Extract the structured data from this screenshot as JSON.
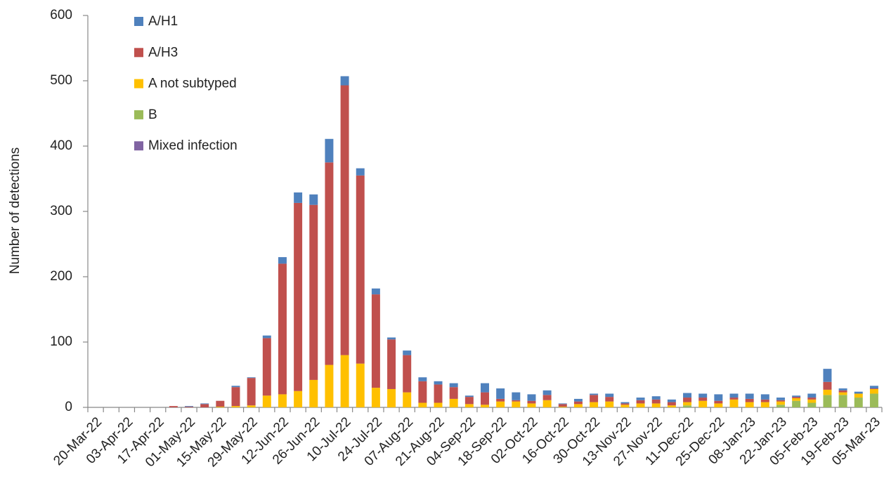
{
  "chart_data": {
    "type": "bar",
    "stacked": true,
    "y_label": "Number of detections",
    "categories": [
      "20-Mar-22",
      null,
      "03-Apr-22",
      null,
      "17-Apr-22",
      null,
      "01-May-22",
      null,
      "15-May-22",
      null,
      "29-May-22",
      null,
      "12-Jun-22",
      null,
      "26-Jun-22",
      null,
      "10-Jul-22",
      null,
      "24-Jul-22",
      null,
      "07-Aug-22",
      null,
      "21-Aug-22",
      null,
      "04-Sep-22",
      null,
      "18-Sep-22",
      null,
      "02-Oct-22",
      null,
      "16-Oct-22",
      null,
      "30-Oct-22",
      null,
      "13-Nov-22",
      null,
      "27-Nov-22",
      null,
      "11-Dec-22",
      null,
      "25-Dec-22",
      null,
      "08-Jan-23",
      null,
      "22-Jan-23",
      null,
      "05-Feb-23",
      null,
      "19-Feb-23",
      null,
      "05-Mar-23"
    ],
    "series": [
      {
        "name": "A/H1",
        "color": "#4f81bd",
        "values": [
          0,
          0,
          0,
          0,
          0,
          0,
          1,
          1,
          0,
          2,
          1,
          4,
          10,
          16,
          16,
          36,
          14,
          11,
          9,
          3,
          7,
          6,
          5,
          6,
          2,
          14,
          16,
          12,
          10,
          7,
          1,
          4,
          2,
          5,
          2,
          4,
          5,
          4,
          7,
          6,
          10,
          6,
          8,
          8,
          4,
          2,
          6,
          20,
          3,
          3,
          4
        ]
      },
      {
        "name": "A/H3",
        "color": "#c0504d",
        "values": [
          0,
          0,
          0,
          0,
          0,
          2,
          1,
          5,
          9,
          29,
          42,
          88,
          200,
          288,
          268,
          310,
          413,
          288,
          143,
          76,
          57,
          33,
          28,
          18,
          11,
          19,
          4,
          2,
          4,
          8,
          4,
          4,
          11,
          7,
          2,
          5,
          6,
          5,
          7,
          5,
          4,
          3,
          5,
          4,
          2,
          2,
          3,
          12,
          3,
          0,
          1
        ]
      },
      {
        "name": "A not subtyped",
        "color": "#ffc000",
        "values": [
          0,
          0,
          0,
          0,
          0,
          0,
          0,
          0,
          1,
          2,
          3,
          18,
          20,
          25,
          42,
          65,
          80,
          67,
          30,
          28,
          23,
          7,
          7,
          13,
          5,
          4,
          9,
          9,
          6,
          11,
          1,
          5,
          8,
          9,
          4,
          6,
          6,
          3,
          5,
          10,
          6,
          12,
          8,
          8,
          5,
          4,
          5,
          8,
          4,
          6,
          7
        ]
      },
      {
        "name": "B",
        "color": "#9bbb59",
        "values": [
          0,
          0,
          0,
          0,
          0,
          0,
          0,
          0,
          0,
          0,
          0,
          0,
          0,
          0,
          0,
          0,
          0,
          0,
          0,
          0,
          0,
          0,
          0,
          0,
          0,
          0,
          0,
          0,
          0,
          0,
          0,
          0,
          0,
          0,
          0,
          0,
          0,
          0,
          3,
          0,
          0,
          0,
          0,
          0,
          4,
          10,
          7,
          19,
          19,
          15,
          21
        ]
      },
      {
        "name": "Mixed infection",
        "color": "#8064a2",
        "values": [
          0,
          0,
          0,
          0,
          0,
          0,
          0,
          0,
          0,
          0,
          0,
          0,
          0,
          0,
          0,
          0,
          0,
          0,
          0,
          0,
          0,
          0,
          0,
          0,
          0,
          0,
          0,
          0,
          0,
          0,
          0,
          0,
          0,
          0,
          0,
          0,
          0,
          0,
          0,
          0,
          0,
          0,
          0,
          0,
          0,
          0,
          0,
          0,
          0,
          0,
          0
        ]
      }
    ],
    "ylim": [
      0,
      600
    ],
    "yticks": [
      0,
      100,
      200,
      300,
      400,
      500,
      600
    ],
    "grid": false,
    "legend": "upper left"
  }
}
